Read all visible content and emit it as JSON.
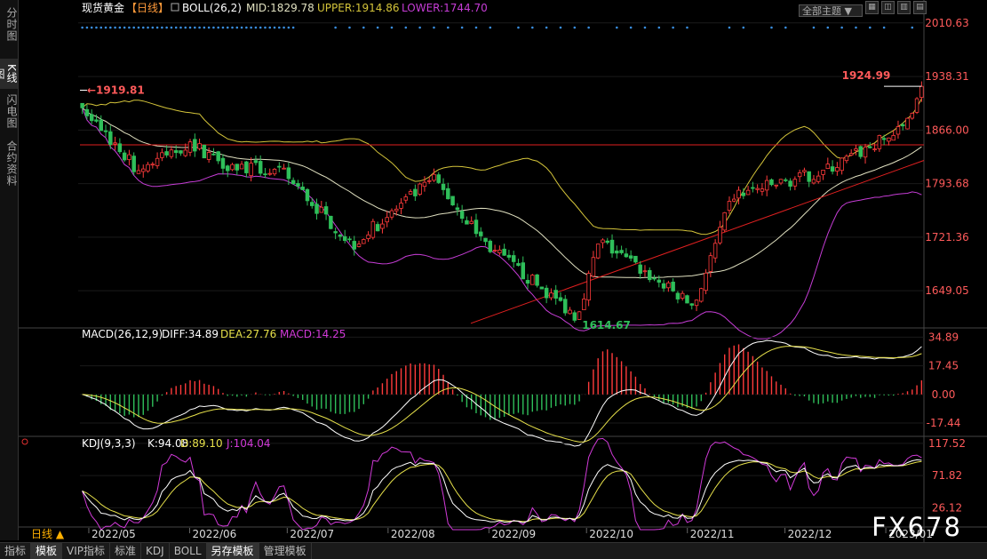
{
  "sidebar": {
    "tabs": [
      {
        "label": "分时图",
        "active": false
      },
      {
        "label": "K线图",
        "active": true
      },
      {
        "label": "闪电图",
        "active": false
      },
      {
        "label": "合约资料",
        "active": false
      }
    ]
  },
  "header": {
    "title": "现货黄金",
    "period": "【日线】",
    "boll": "BOLL(26,2)",
    "mid": "MID:1829.78",
    "upper": "UPPER:1914.86",
    "lower": "LOWER:1744.70"
  },
  "toolbar": {
    "theme": "全部主题",
    "buttons": [
      "grid-icon",
      "layout-icon",
      "chart-icon",
      "more-icon"
    ],
    "button_glyphs": [
      "▦",
      "◫",
      "▥",
      "▤"
    ]
  },
  "main_axis": {
    "ticks": [
      "2010.63",
      "1938.31",
      "1866.00",
      "1793.68",
      "1721.36",
      "1649.05"
    ]
  },
  "annotations": {
    "high_left": "1919.81",
    "high_right": "1924.99",
    "low": "1614.67"
  },
  "macd": {
    "header": "MACD(26,12,9)",
    "diff": "DIFF:34.89",
    "dea": "DEA:27.76",
    "macd": "MACD:14.25",
    "ticks": [
      "34.89",
      "17.45",
      "0.00",
      "-17.44"
    ]
  },
  "kdj": {
    "header": "KDJ(9,3,3)",
    "k": "K:94.08",
    "d": "D:89.10",
    "j": "J:104.04",
    "ticks": [
      "117.52",
      "71.82",
      "26.12"
    ]
  },
  "x_axis": {
    "labels": [
      "2022/05",
      "2022/06",
      "2022/07",
      "2022/08",
      "2022/09",
      "2022/10",
      "2022/11",
      "2022/12",
      "2023/01"
    ]
  },
  "period_selector": "日线 ▲",
  "bottom_tabs": [
    {
      "label": "指标",
      "active": false
    },
    {
      "label": "模板",
      "active": true
    },
    {
      "label": "VIP指标",
      "active": false
    },
    {
      "label": "标准",
      "active": false
    },
    {
      "label": "KDJ",
      "active": false
    },
    {
      "label": "BOLL",
      "active": false
    },
    {
      "label": "另存模板",
      "active": true
    },
    {
      "label": "管理模板",
      "active": false
    }
  ],
  "watermark": "FX678",
  "colors": {
    "up": "#ff3b3b",
    "down": "#2fbf5a",
    "mid": "#e0e0c0",
    "upper": "#d4c43a",
    "lower": "#c63dd6",
    "macd_diff": "#ffffff",
    "macd_dea": "#e6e04a",
    "kdj_k": "#ffffff",
    "kdj_d": "#e6e04a",
    "kdj_j": "#d13ad8",
    "axis_text": "#ff5a5a",
    "signal_dots": "#3a8fe0"
  },
  "chart_data": [
    {
      "type": "candlestick",
      "title": "现货黄金 日线",
      "ylim": [
        1600,
        2020
      ],
      "x_range": [
        "2022/04/29",
        "2023/01/12"
      ],
      "series": [
        {
          "name": "BOLL MID",
          "value_last": 1829.78
        },
        {
          "name": "BOLL UPPER",
          "value_last": 1914.86
        },
        {
          "name": "BOLL LOWER",
          "value_last": 1744.7
        }
      ],
      "price_path": [
        {
          "date": "2022/04/29",
          "close": 1896
        },
        {
          "date": "2022/05/16",
          "close": 1812
        },
        {
          "date": "2022/06/01",
          "close": 1848
        },
        {
          "date": "2022/06/13",
          "close": 1819
        },
        {
          "date": "2022/06/30",
          "close": 1807
        },
        {
          "date": "2022/07/21",
          "close": 1711
        },
        {
          "date": "2022/08/15",
          "close": 1800
        },
        {
          "date": "2022/09/01",
          "close": 1708
        },
        {
          "date": "2022/09/28",
          "close": 1614.67
        },
        {
          "date": "2022/10/05",
          "close": 1716
        },
        {
          "date": "2022/11/03",
          "close": 1628
        },
        {
          "date": "2022/11/15",
          "close": 1777
        },
        {
          "date": "2022/12/13",
          "close": 1810
        },
        {
          "date": "2023/01/06",
          "close": 1866
        },
        {
          "date": "2023/01/12",
          "close": 1924.99
        }
      ]
    },
    {
      "type": "bar",
      "title": "MACD(26,12,9)",
      "ylim": [
        -25,
        40
      ],
      "series": [
        {
          "name": "DIFF",
          "value_last": 34.89
        },
        {
          "name": "DEA",
          "value_last": 27.76
        },
        {
          "name": "MACD",
          "value_last": 14.25
        }
      ]
    },
    {
      "type": "line",
      "title": "KDJ(9,3,3)",
      "ylim": [
        0,
        125
      ],
      "series": [
        {
          "name": "K",
          "value_last": 94.08
        },
        {
          "name": "D",
          "value_last": 89.1
        },
        {
          "name": "J",
          "value_last": 104.04
        }
      ]
    }
  ]
}
